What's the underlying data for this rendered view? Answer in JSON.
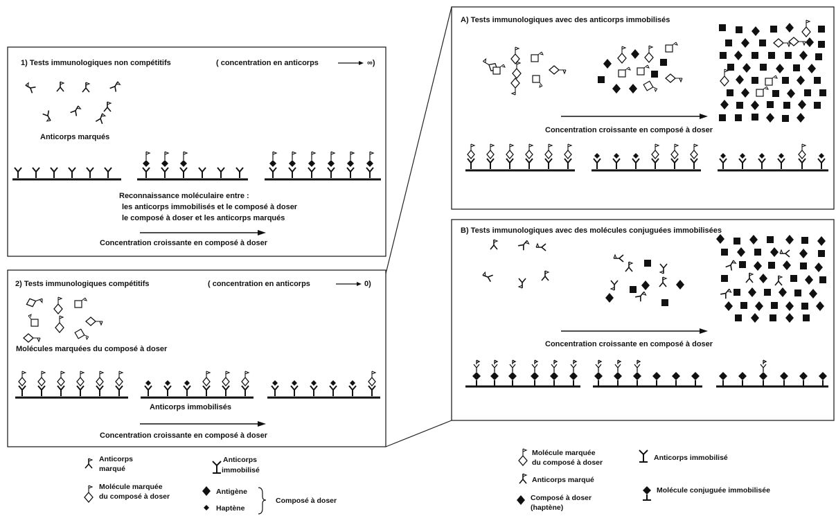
{
  "panel1": {
    "title": "1) Tests immunologiques non compétitifs",
    "condition": "( concentration en anticorps",
    "condition_end": "∞)",
    "labeled_ab_caption": "Anticorps marqués",
    "recognition": [
      "Reconnaissance moléculaire entre :",
      "les anticorps immobilisés et le composé à doser",
      "le composé à doser et les anticorps marqués"
    ],
    "arrow_caption": "Concentration croissante en composé à doser"
  },
  "panel2": {
    "title": "2) Tests immunologiques compétitifs",
    "condition": "( concentration en anticorps",
    "condition_end": "0)",
    "labeled_mol_caption": "Molécules marquées du composé à doser",
    "immobilized_caption": "Anticorps immobilisés",
    "arrow_caption": "Concentration croissante en composé à doser"
  },
  "panelA": {
    "title": "A) Tests immunologiques avec des anticorps immobilisés",
    "arrow_caption": "Concentration croissante en composé à doser"
  },
  "panelB": {
    "title": "B) Tests immunologiques avec des molécules conjuguées immobilisées",
    "arrow_caption": "Concentration croissante en composé à doser"
  },
  "legend_left": {
    "labeled_ab": [
      "Anticorps",
      "marqué"
    ],
    "immobilized_ab": [
      "Anticorps",
      "immobilisé"
    ],
    "labeled_mol": [
      "Molécule marquée",
      "du composé à doser"
    ],
    "antigen": "Antigène",
    "hapten": "Haptène",
    "analyte": "Composé à doser"
  },
  "legend_right": {
    "labeled_mol": [
      "Molécule marquée",
      "du composé à doser"
    ],
    "immobilized_ab": "Anticorps immobilisé",
    "labeled_ab": "Anticorps marqué",
    "analyte": [
      "Composé à doser",
      "(haptène)"
    ],
    "conjugated": "Molécule conjuguée immobilisée"
  }
}
